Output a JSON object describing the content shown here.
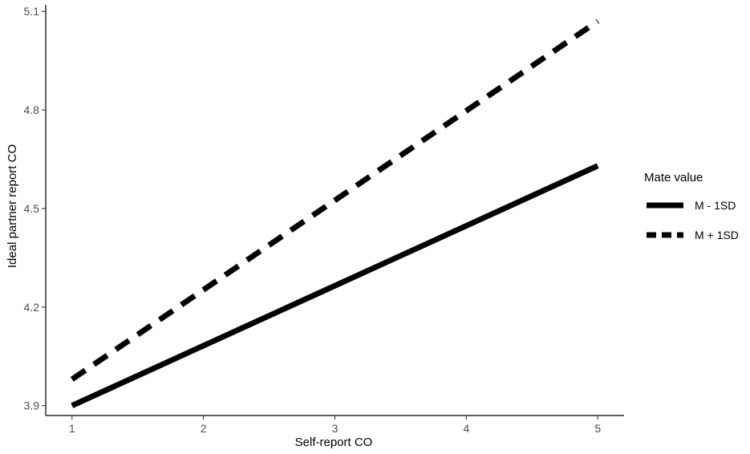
{
  "chart_data": {
    "type": "line",
    "xlabel": "Self-report CO",
    "ylabel": "Ideal partner report CO",
    "xlim": [
      0.8,
      5.2
    ],
    "ylim": [
      3.87,
      5.12
    ],
    "xticks": [
      1,
      2,
      3,
      4,
      5
    ],
    "yticks": [
      3.9,
      4.2,
      4.5,
      4.8,
      5.1
    ],
    "ytick_labels": [
      "3.9",
      "4.2",
      "4.5",
      "4.8",
      "5.1"
    ],
    "xtick_labels": [
      "1",
      "2",
      "3",
      "4",
      "5"
    ],
    "grid": false,
    "legend": {
      "title": "Mate value",
      "placement": "right",
      "entries": [
        {
          "label": "M - 1SD",
          "style": "solid"
        },
        {
          "label": "M + 1SD",
          "style": "dashed"
        }
      ]
    },
    "series": [
      {
        "name": "M - 1SD",
        "style": "solid",
        "color": "#000000",
        "x": [
          1,
          5
        ],
        "y": [
          3.9,
          4.63
        ]
      },
      {
        "name": "M + 1SD",
        "style": "dashed",
        "color": "#000000",
        "x": [
          1,
          5
        ],
        "y": [
          3.98,
          5.07
        ]
      }
    ]
  }
}
